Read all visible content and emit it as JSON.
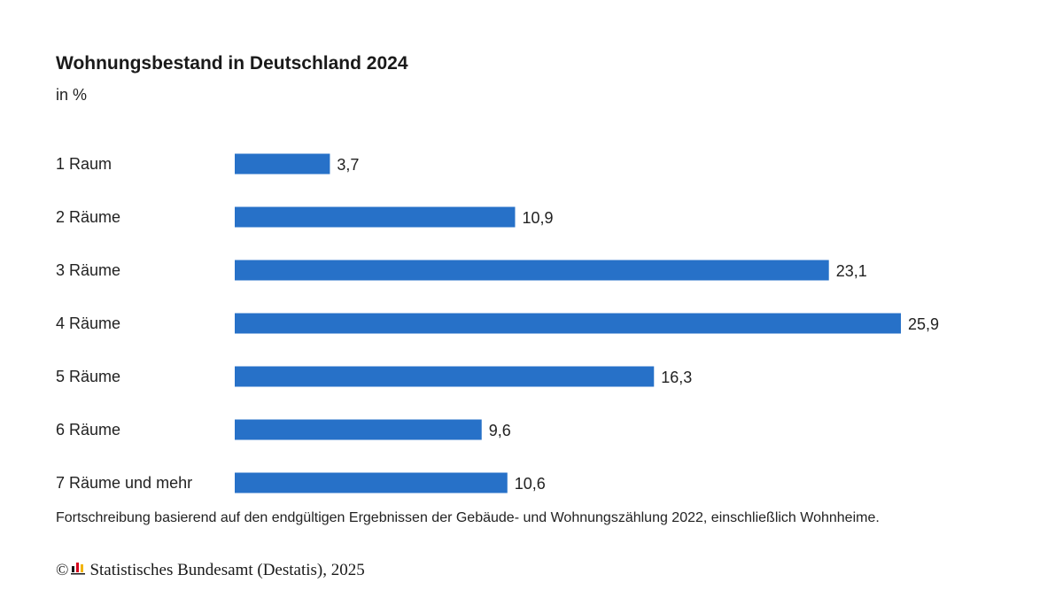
{
  "chart_data": {
    "type": "bar",
    "orientation": "horizontal",
    "title": "Wohnungsbestand in Deutschland 2024",
    "subtitle": "in %",
    "categories": [
      "1 Raum",
      "2 Räume",
      "3 Räume",
      "4 Räume",
      "5 Räume",
      "6 Räume",
      "7 Räume und mehr"
    ],
    "values": [
      3.7,
      10.9,
      23.1,
      25.9,
      16.3,
      9.6,
      10.6
    ],
    "value_labels": [
      "3,7",
      "10,9",
      "23,1",
      "25,9",
      "16,3",
      "9,6",
      "10,6"
    ],
    "xlim": [
      0,
      25.9
    ],
    "grid": false,
    "legend": "none",
    "bar_color": "#2771c8",
    "label_color": "#222222"
  },
  "footnote": "Fortschreibung basierend auf den endgültigen Ergebnissen der Gebäude- und Wohnungszählung 2022, einschließlich Wohnheime.",
  "source": {
    "copyright_symbol": "©",
    "text": "Statistisches Bundesamt (Destatis), 2025",
    "logo_icon": "destatis-logo-icon"
  }
}
